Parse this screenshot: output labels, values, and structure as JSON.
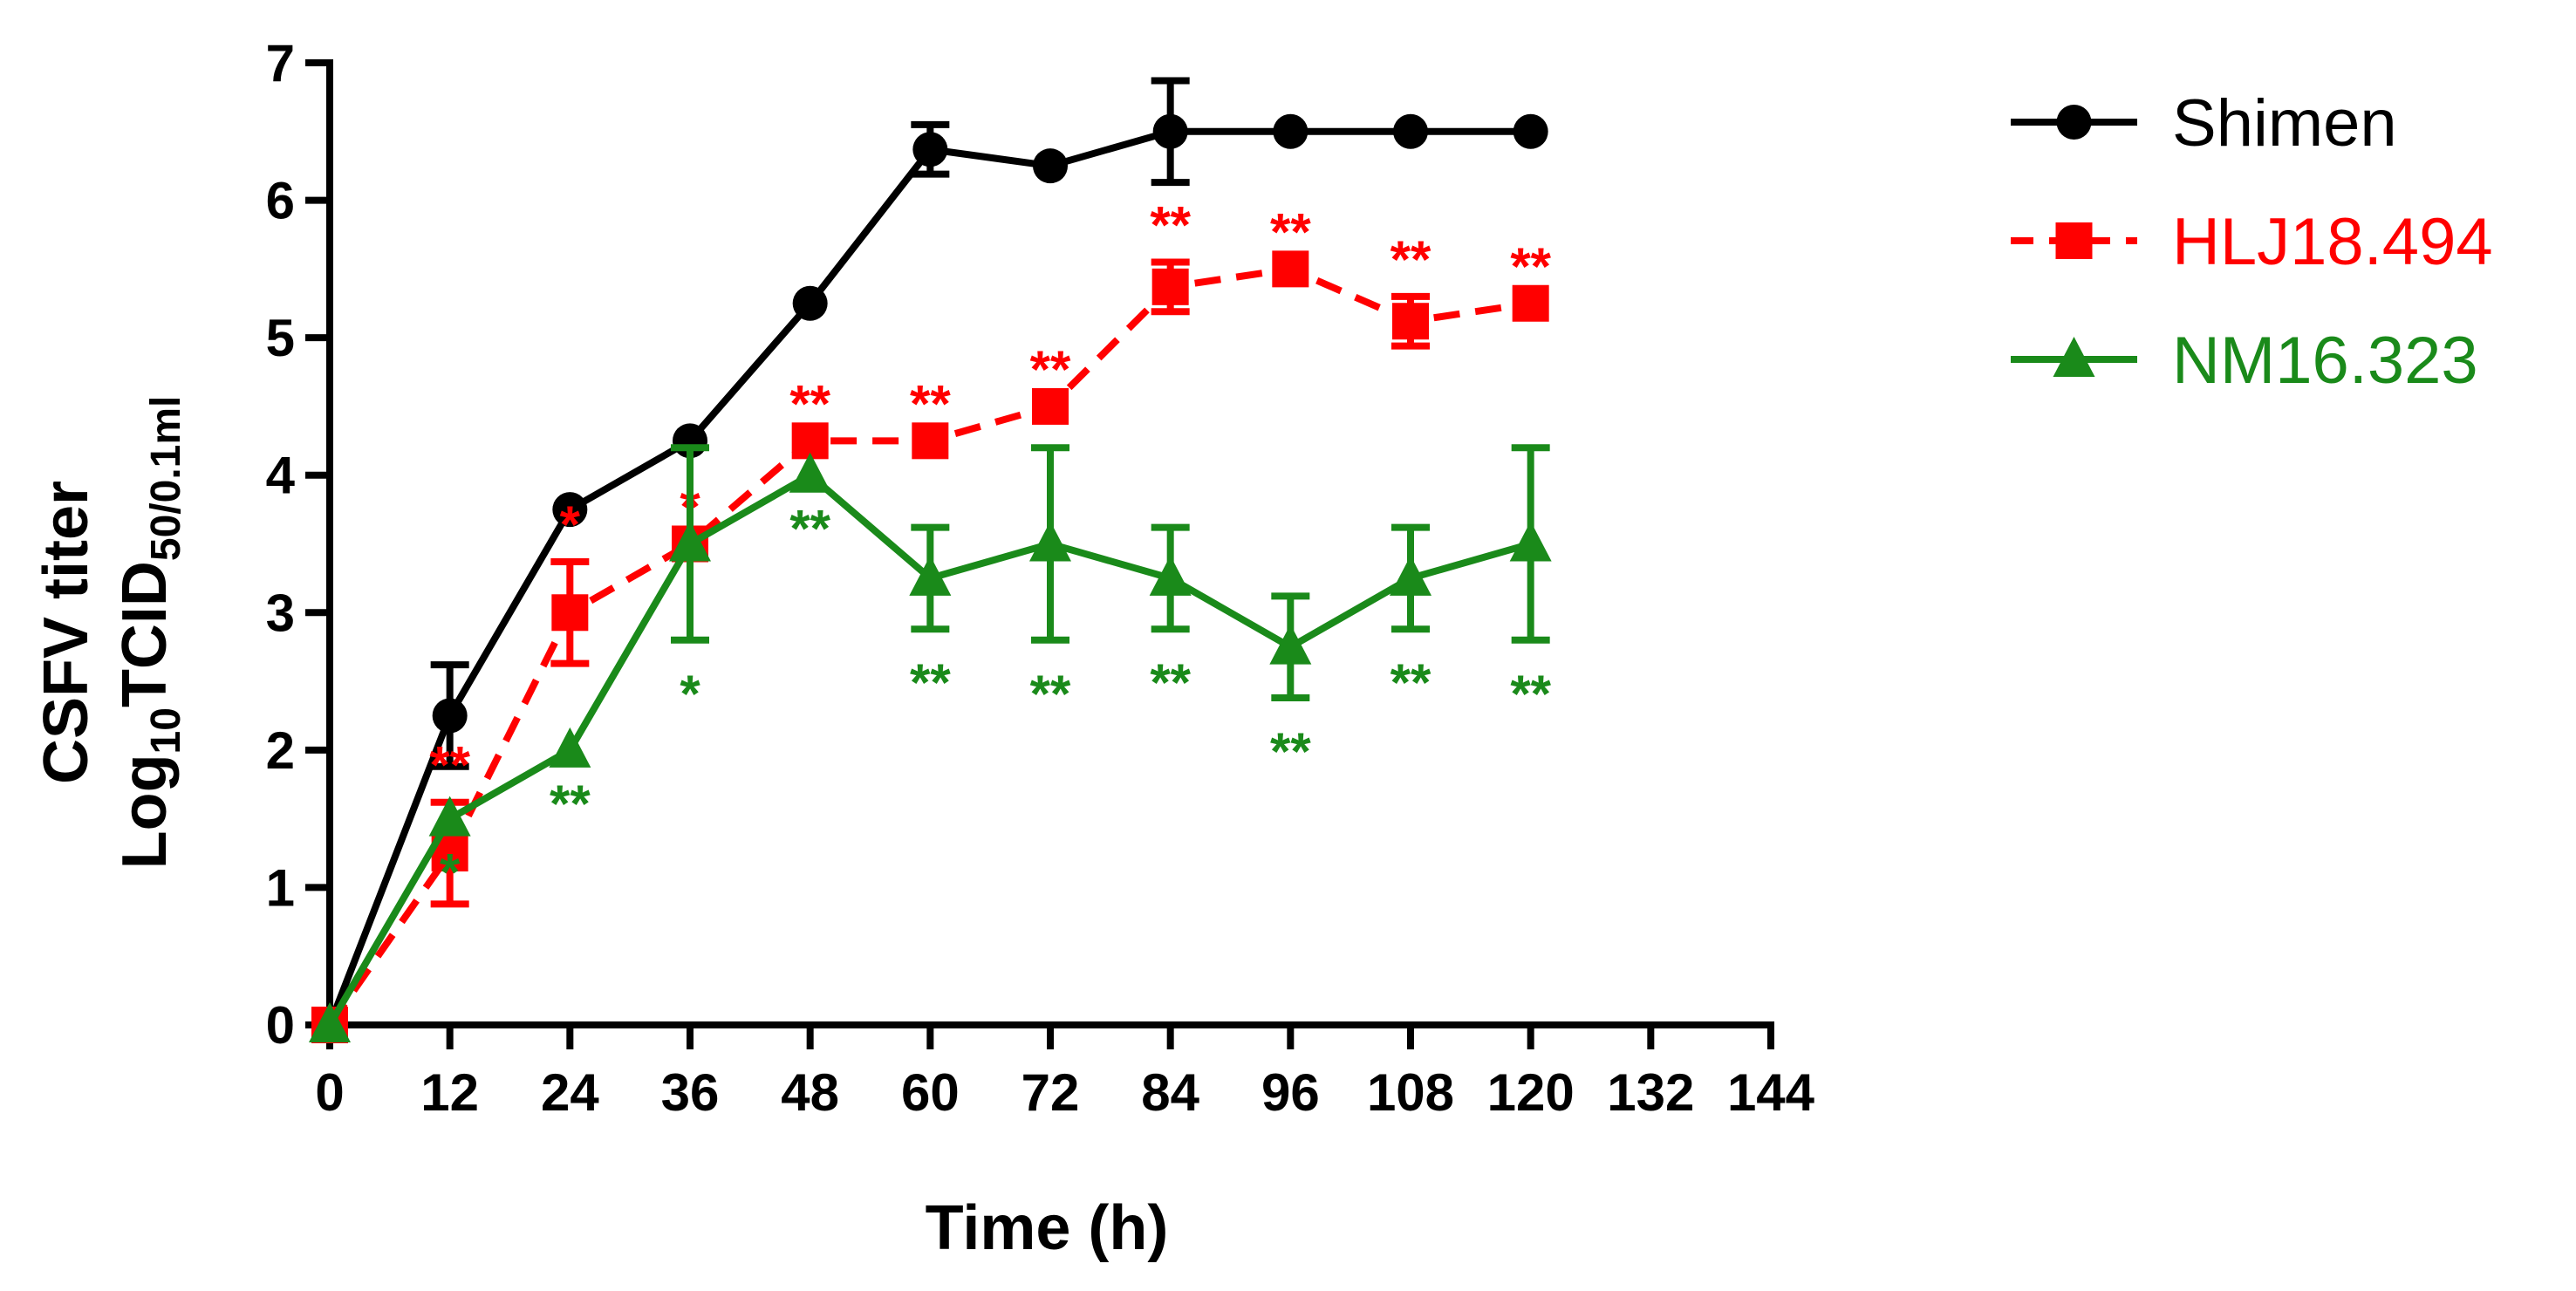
{
  "chart_data": {
    "type": "line",
    "title": "",
    "xlabel": "Time (h)",
    "ylabel_line1": "CSFV titer",
    "ylabel_line2": {
      "main": "Log",
      "sub1": "10",
      "mid": "TCID",
      "sub2": "50/0.1ml"
    },
    "xlim": [
      0,
      144
    ],
    "ylim": [
      0,
      7
    ],
    "xticks": [
      0,
      12,
      24,
      36,
      48,
      60,
      72,
      84,
      96,
      108,
      120,
      132,
      144
    ],
    "xtick_labels": [
      "0",
      "12",
      "24",
      "36",
      "48",
      "60",
      "72",
      "84",
      "96",
      "108",
      "120",
      "132",
      "144"
    ],
    "yticks": [
      0,
      1,
      2,
      3,
      4,
      5,
      6,
      7
    ],
    "ytick_labels": [
      "0",
      "1",
      "2",
      "3",
      "4",
      "5",
      "6",
      "7"
    ],
    "legend_position": "top-right",
    "series": [
      {
        "name": "Shimen",
        "color": "#000000",
        "marker": "circle",
        "dash": "solid",
        "x": [
          0,
          12,
          24,
          36,
          48,
          60,
          72,
          84,
          96,
          108,
          120
        ],
        "y": [
          0,
          2.25,
          3.75,
          4.25,
          5.25,
          6.37,
          6.25,
          6.5,
          6.5,
          6.5,
          6.5
        ],
        "err": [
          0,
          0.37,
          0,
          0,
          0,
          0.18,
          0,
          0.37,
          0,
          0,
          0
        ],
        "sig": [
          null,
          null,
          null,
          null,
          null,
          null,
          null,
          null,
          null,
          null,
          null
        ]
      },
      {
        "name": "HLJ18.494",
        "color": "#ff0000",
        "marker": "square",
        "dash": "dashed",
        "x": [
          0,
          12,
          24,
          36,
          48,
          60,
          72,
          84,
          96,
          108,
          120
        ],
        "y": [
          0,
          1.25,
          3.0,
          3.5,
          4.25,
          4.25,
          4.5,
          5.37,
          5.5,
          5.12,
          5.25
        ],
        "err": [
          0,
          0.37,
          0.37,
          0,
          0,
          0,
          0,
          0.18,
          0,
          0.18,
          0
        ],
        "sig": [
          null,
          "**",
          "*",
          "*",
          "**",
          "**",
          "**",
          "**",
          "**",
          "**",
          "**"
        ]
      },
      {
        "name": "NM16.323",
        "color": "#1a8a1a",
        "marker": "triangle",
        "dash": "solid",
        "x": [
          0,
          12,
          24,
          36,
          48,
          60,
          72,
          84,
          96,
          108,
          120
        ],
        "y": [
          0,
          1.5,
          2.0,
          3.5,
          4.0,
          3.25,
          3.5,
          3.25,
          2.75,
          3.25,
          3.5
        ],
        "err": [
          0,
          0,
          0,
          0.7,
          0,
          0.37,
          0.7,
          0.37,
          0.37,
          0.37,
          0.7
        ],
        "sig": [
          null,
          "*",
          "**",
          "*",
          "**",
          "**",
          "**",
          "**",
          "**",
          "**",
          "**"
        ]
      }
    ]
  }
}
